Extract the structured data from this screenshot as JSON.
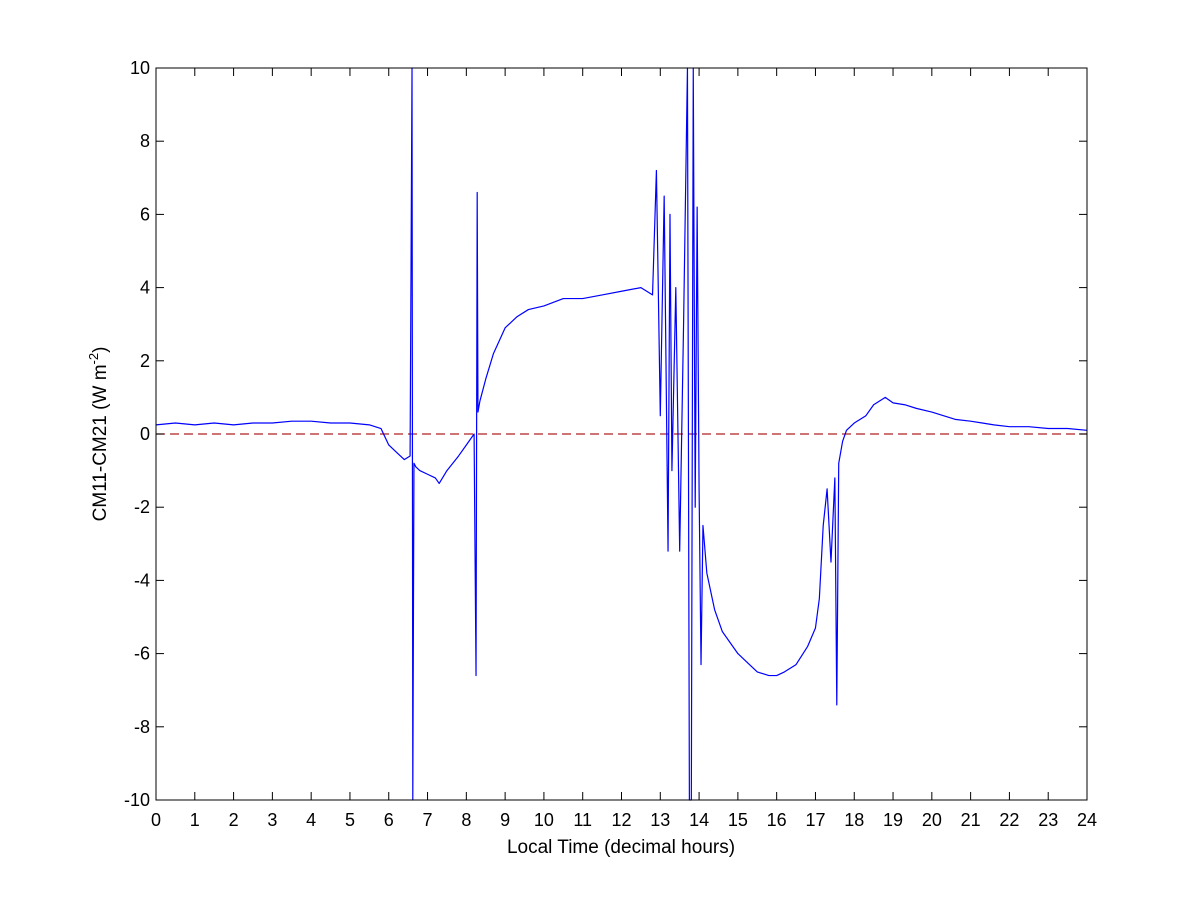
{
  "chart_data": {
    "type": "line",
    "title": "",
    "xlabel": "Local Time (decimal hours)",
    "ylabel": {
      "prefix": "CM11-CM21 (W m",
      "superscript": "-2",
      "suffix": ")"
    },
    "xlim": [
      0,
      24
    ],
    "ylim": [
      -10,
      10
    ],
    "xticks": [
      0,
      1,
      2,
      3,
      4,
      5,
      6,
      7,
      8,
      9,
      10,
      11,
      12,
      13,
      14,
      15,
      16,
      17,
      18,
      19,
      20,
      21,
      22,
      23,
      24
    ],
    "yticks": [
      -10,
      -8,
      -6,
      -4,
      -2,
      0,
      2,
      4,
      6,
      8,
      10
    ],
    "grid": false,
    "legend": "none",
    "colors": {
      "series": "#0000ff",
      "reference": "#b22222",
      "axes": "#000000"
    },
    "reference_line": {
      "y": 0,
      "style": "dashed"
    },
    "series": [
      {
        "x": [
          0,
          0.5,
          1,
          1.5,
          2,
          2.5,
          3,
          3.5,
          4,
          4.5,
          5,
          5.5,
          5.8,
          6,
          6.2,
          6.4,
          6.55,
          6.6,
          6.62,
          6.65,
          6.7,
          6.8,
          7,
          7.2,
          7.3,
          7.5,
          7.8,
          8,
          8.2,
          8.25,
          8.28,
          8.3,
          8.35,
          8.5,
          8.7,
          9,
          9.3,
          9.6,
          10,
          10.5,
          11,
          11.5,
          12,
          12.5,
          12.8,
          12.9,
          13,
          13.1,
          13.2,
          13.25,
          13.3,
          13.4,
          13.5,
          13.6,
          13.7,
          13.75,
          13.8,
          13.85,
          13.9,
          13.95,
          14,
          14.05,
          14.1,
          14.2,
          14.4,
          14.6,
          14.8,
          15,
          15.2,
          15.5,
          15.8,
          16,
          16.2,
          16.5,
          16.8,
          17,
          17.1,
          17.2,
          17.3,
          17.4,
          17.5,
          17.55,
          17.6,
          17.7,
          17.8,
          18,
          18.3,
          18.5,
          18.8,
          19,
          19.3,
          19.6,
          20,
          20.3,
          20.6,
          21,
          21.3,
          21.6,
          22,
          22.5,
          23,
          23.5,
          24
        ],
        "y": [
          0.25,
          0.3,
          0.25,
          0.3,
          0.25,
          0.3,
          0.3,
          0.35,
          0.35,
          0.3,
          0.3,
          0.25,
          0.15,
          -0.3,
          -0.5,
          -0.7,
          -0.6,
          10,
          -10,
          -0.8,
          -0.9,
          -1.0,
          -1.1,
          -1.2,
          -1.35,
          -1.0,
          -0.6,
          -0.3,
          0.0,
          -6.6,
          6.6,
          0.6,
          0.9,
          1.5,
          2.2,
          2.9,
          3.2,
          3.4,
          3.5,
          3.7,
          3.7,
          3.8,
          3.9,
          4.0,
          3.8,
          7.2,
          0.5,
          6.5,
          -3.2,
          6.0,
          -1.0,
          4.0,
          -3.2,
          3.0,
          10,
          -10,
          -10,
          10,
          -2.0,
          6.2,
          -1.5,
          -6.3,
          -2.5,
          -3.8,
          -4.8,
          -5.4,
          -5.7,
          -6.0,
          -6.2,
          -6.5,
          -6.6,
          -6.6,
          -6.5,
          -6.3,
          -5.8,
          -5.3,
          -4.5,
          -2.5,
          -1.5,
          -3.5,
          -1.2,
          -7.4,
          -0.8,
          -0.2,
          0.1,
          0.3,
          0.5,
          0.8,
          1.0,
          0.85,
          0.8,
          0.7,
          0.6,
          0.5,
          0.4,
          0.35,
          0.3,
          0.25,
          0.2,
          0.2,
          0.15,
          0.15,
          0.1
        ]
      }
    ]
  }
}
